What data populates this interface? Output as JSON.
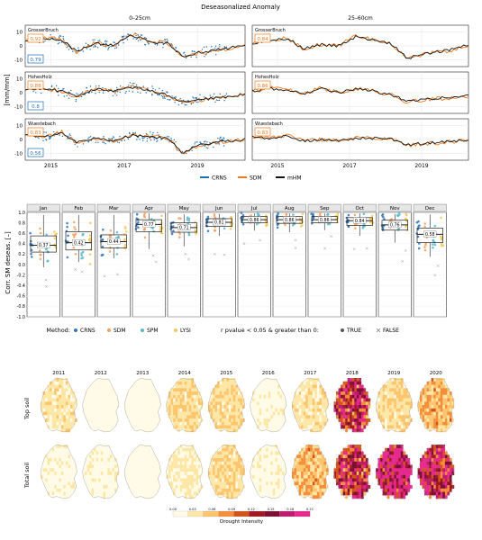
{
  "chart_data": [
    {
      "type": "line",
      "title": "Deseasonalized Anomaly",
      "columns": [
        "0–25cm",
        "25–60cm"
      ],
      "ylabel": "[mm/mm]",
      "ylim": [
        -15,
        15
      ],
      "yticks": [
        "10",
        "0",
        "-10"
      ],
      "xlim": [
        2014.3,
        2020.3
      ],
      "xticks": [
        {
          "v": 2015,
          "label": "2015"
        },
        {
          "v": 2017,
          "label": "2017"
        },
        {
          "v": 2019,
          "label": "2019"
        }
      ],
      "sites": [
        "GrosserBruch",
        "HohesHolz",
        "Wuestebach"
      ],
      "r_values": [
        {
          "site": "GrosserBruch",
          "top_sdm": "0.92",
          "top_crns": "0.79",
          "sub_sdm": "0.84"
        },
        {
          "site": "HohesHolz",
          "top_sdm": "0.88",
          "top_crns": "0.8",
          "sub_sdm": "0.86"
        },
        {
          "site": "Wuestebach",
          "top_sdm": "0.83",
          "top_crns": "0.56",
          "sub_sdm": "0.83"
        }
      ],
      "series": [
        {
          "name": "CRNS",
          "color": "#1f6fb4"
        },
        {
          "name": "SDM",
          "color": "#f27a1c"
        },
        {
          "name": "mHM",
          "color": "#111111"
        }
      ],
      "anomaly_curve": [
        {
          "year": 2014.3,
          "top": [
            3,
            2,
            4
          ],
          "sub": [
            2,
            1,
            2
          ]
        },
        {
          "year": 2014.8,
          "top": [
            6,
            3,
            2
          ],
          "sub": [
            4,
            3,
            1
          ]
        },
        {
          "year": 2015.3,
          "top": [
            4,
            1,
            5
          ],
          "sub": [
            5,
            2,
            3
          ]
        },
        {
          "year": 2015.7,
          "top": [
            -4,
            -3,
            -2
          ],
          "sub": [
            -2,
            -1,
            -1
          ]
        },
        {
          "year": 2016.2,
          "top": [
            2,
            3,
            1
          ],
          "sub": [
            1,
            3,
            0
          ]
        },
        {
          "year": 2016.7,
          "top": [
            0,
            1,
            -1
          ],
          "sub": [
            0,
            0,
            -1
          ]
        },
        {
          "year": 2017.2,
          "top": [
            8,
            4,
            3
          ],
          "sub": [
            7,
            3,
            1
          ]
        },
        {
          "year": 2017.7,
          "top": [
            3,
            2,
            2
          ],
          "sub": [
            4,
            1,
            1
          ]
        },
        {
          "year": 2018.2,
          "top": [
            2,
            -2,
            1
          ],
          "sub": [
            1,
            -2,
            0
          ]
        },
        {
          "year": 2018.6,
          "top": [
            -8,
            -7,
            -10
          ],
          "sub": [
            -9,
            -6,
            -4
          ]
        },
        {
          "year": 2019.0,
          "top": [
            -5,
            -5,
            -4
          ],
          "sub": [
            -6,
            -5,
            -3
          ]
        },
        {
          "year": 2019.5,
          "top": [
            -3,
            -4,
            -2
          ],
          "sub": [
            -4,
            -4,
            -2
          ]
        },
        {
          "year": 2020.0,
          "top": [
            -1,
            -2,
            -1
          ],
          "sub": [
            -2,
            -3,
            -1
          ]
        },
        {
          "year": 2020.3,
          "top": [
            1,
            -1,
            0
          ],
          "sub": [
            1,
            -2,
            0
          ]
        }
      ]
    },
    {
      "type": "boxplot",
      "ylabel": "Corr. SM deseas. [–]",
      "ylim": [
        -1.0,
        1.0
      ],
      "yticks": [
        "1.0",
        "0.8",
        "0.6",
        "0.4",
        "0.2",
        "0.0",
        "-0.2",
        "-0.4",
        "-0.6",
        "-0.8",
        "-1.0"
      ],
      "months": [
        {
          "label": "Jan",
          "median": 0.37,
          "q1": 0.24,
          "q3": 0.55,
          "lo": -0.05,
          "hi": 0.95,
          "mlabel": "0.37"
        },
        {
          "label": "Feb",
          "median": 0.42,
          "q1": 0.28,
          "q3": 0.63,
          "lo": 0.05,
          "hi": 0.95,
          "mlabel": "0.42"
        },
        {
          "label": "Mar",
          "median": 0.44,
          "q1": 0.32,
          "q3": 0.57,
          "lo": 0.12,
          "hi": 0.95,
          "mlabel": "0.44"
        },
        {
          "label": "Apr",
          "median": 0.77,
          "q1": 0.63,
          "q3": 0.86,
          "lo": 0.3,
          "hi": 0.98,
          "mlabel": "0.77"
        },
        {
          "label": "May",
          "median": 0.71,
          "q1": 0.62,
          "q3": 0.8,
          "lo": 0.35,
          "hi": 0.96,
          "mlabel": "0.71"
        },
        {
          "label": "Jun",
          "median": 0.81,
          "q1": 0.73,
          "q3": 0.88,
          "lo": 0.55,
          "hi": 0.97,
          "mlabel": "0.81"
        },
        {
          "label": "Jul",
          "median": 0.86,
          "q1": 0.8,
          "q3": 0.92,
          "lo": 0.65,
          "hi": 0.98,
          "mlabel": "0.86"
        },
        {
          "label": "Aug",
          "median": 0.86,
          "q1": 0.79,
          "q3": 0.92,
          "lo": 0.62,
          "hi": 0.98,
          "mlabel": "0.86"
        },
        {
          "label": "Sep",
          "median": 0.86,
          "q1": 0.8,
          "q3": 0.92,
          "lo": 0.66,
          "hi": 0.98,
          "mlabel": "0.86"
        },
        {
          "label": "Oct",
          "median": 0.84,
          "q1": 0.75,
          "q3": 0.9,
          "lo": 0.55,
          "hi": 0.98,
          "mlabel": "0.84"
        },
        {
          "label": "Nov",
          "median": 0.76,
          "q1": 0.66,
          "q3": 0.85,
          "lo": 0.42,
          "hi": 0.97,
          "mlabel": "0.76"
        },
        {
          "label": "Dec",
          "median": 0.58,
          "q1": 0.42,
          "q3": 0.7,
          "lo": 0.15,
          "hi": 0.96,
          "mlabel": "0.58"
        }
      ],
      "methods": [
        {
          "name": "CRNS",
          "color": "#3477b6"
        },
        {
          "name": "SDM",
          "color": "#f4a15e"
        },
        {
          "name": "SPM",
          "color": "#5ab8c8"
        },
        {
          "name": "LYSI",
          "color": "#f2c95a"
        }
      ],
      "legend_method_title": "Method:",
      "legend_p_title": "r pvalue < 0.05 & greater than 0:",
      "legend_p": [
        "TRUE",
        "FALSE"
      ]
    },
    {
      "type": "heatmap",
      "years": [
        "2011",
        "2012",
        "2013",
        "2014",
        "2015",
        "2016",
        "2017",
        "2018",
        "2019",
        "2020"
      ],
      "rows": [
        "Top soil",
        "Total soil"
      ],
      "intensity": [
        [
          0.04,
          0.01,
          0.005,
          0.05,
          0.05,
          0.02,
          0.04,
          0.16,
          0.05,
          0.07
        ],
        [
          0.02,
          0.02,
          0.005,
          0.03,
          0.05,
          0.02,
          0.07,
          0.16,
          0.22,
          0.18
        ]
      ],
      "colorbar": {
        "title": "Drought Intensity",
        "ticks": [
          "0.00",
          "0.03",
          "0.06",
          "0.09",
          "0.12",
          "0.15",
          "0.18",
          "0.21"
        ],
        "colors": [
          "#fffbe6",
          "#fee7a6",
          "#fdc56e",
          "#f58e3b",
          "#d4531c",
          "#a11a22",
          "#7c0f32",
          "#c01a6f",
          "#e5298d"
        ]
      }
    }
  ]
}
